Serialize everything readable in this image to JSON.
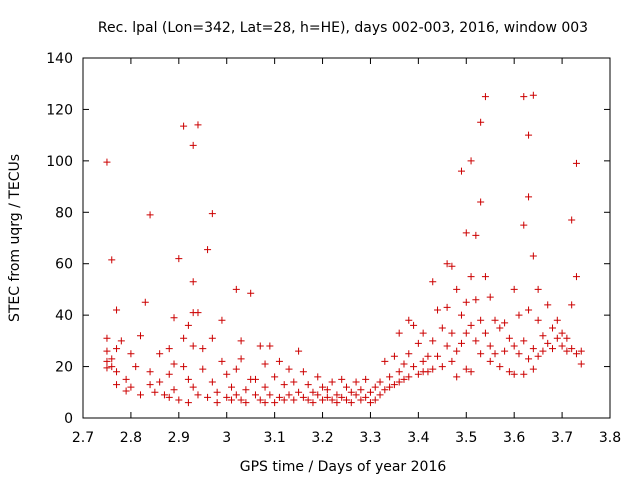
{
  "chart_data": {
    "type": "scatter",
    "title": "Rec. lpal (Lon=342, Lat=28, h=HE), days 002-003, 2016, window 003",
    "xlabel": "GPS time / Days of year 2016",
    "ylabel": "STEC from uqrg / TECUs",
    "xlim": [
      2.7,
      3.8
    ],
    "ylim": [
      0,
      140
    ],
    "xticks": [
      2.7,
      2.8,
      2.9,
      3.0,
      3.1,
      3.2,
      3.3,
      3.4,
      3.5,
      3.6,
      3.7,
      3.8
    ],
    "xtick_labels": [
      "2.7",
      "2.8",
      "2.9",
      "3",
      "3.1",
      "3.2",
      "3.3",
      "3.4",
      "3.5",
      "3.6",
      "3.7",
      "3.8"
    ],
    "yticks": [
      0,
      20,
      40,
      60,
      80,
      100,
      120,
      140
    ],
    "ytick_labels": [
      "0",
      "20",
      "40",
      "60",
      "80",
      "100",
      "120",
      "140"
    ],
    "marker_color": "#cc0000",
    "axis_color": "#000000",
    "series": [
      {
        "name": "STEC",
        "points": [
          [
            2.75,
            99.5
          ],
          [
            2.76,
            61.5
          ],
          [
            2.77,
            42
          ],
          [
            2.75,
            31
          ],
          [
            2.75,
            26
          ],
          [
            2.75,
            22
          ],
          [
            2.75,
            19.5
          ],
          [
            2.76,
            20
          ],
          [
            2.76,
            23
          ],
          [
            2.77,
            27
          ],
          [
            2.77,
            18
          ],
          [
            2.78,
            30
          ],
          [
            2.77,
            13
          ],
          [
            2.79,
            15
          ],
          [
            2.79,
            10.5
          ],
          [
            2.8,
            25
          ],
          [
            2.8,
            12
          ],
          [
            2.81,
            20
          ],
          [
            2.82,
            32
          ],
          [
            2.83,
            45
          ],
          [
            2.82,
            9
          ],
          [
            2.84,
            79
          ],
          [
            2.84,
            18
          ],
          [
            2.84,
            13
          ],
          [
            2.85,
            10
          ],
          [
            2.86,
            25
          ],
          [
            2.86,
            14
          ],
          [
            2.87,
            9
          ],
          [
            2.88,
            27
          ],
          [
            2.88,
            17
          ],
          [
            2.88,
            8
          ],
          [
            2.89,
            39
          ],
          [
            2.89,
            21
          ],
          [
            2.89,
            11
          ],
          [
            2.9,
            7
          ],
          [
            2.9,
            62
          ],
          [
            2.91,
            31
          ],
          [
            2.91,
            20
          ],
          [
            2.91,
            113.5
          ],
          [
            2.92,
            36
          ],
          [
            2.92,
            15
          ],
          [
            2.92,
            6
          ],
          [
            2.93,
            106
          ],
          [
            2.93,
            53
          ],
          [
            2.93,
            41
          ],
          [
            2.93,
            28
          ],
          [
            2.93,
            12
          ],
          [
            2.94,
            114
          ],
          [
            2.94,
            41
          ],
          [
            2.94,
            9
          ],
          [
            2.95,
            27
          ],
          [
            2.95,
            19
          ],
          [
            2.96,
            65.5
          ],
          [
            2.96,
            8
          ],
          [
            2.97,
            79.5
          ],
          [
            2.97,
            31
          ],
          [
            2.97,
            14
          ],
          [
            2.98,
            10
          ],
          [
            2.98,
            6
          ],
          [
            2.99,
            38
          ],
          [
            2.99,
            22
          ],
          [
            3.0,
            17
          ],
          [
            3.0,
            8
          ],
          [
            3.01,
            12
          ],
          [
            3.01,
            7
          ],
          [
            3.02,
            50
          ],
          [
            3.02,
            19
          ],
          [
            3.02,
            9
          ],
          [
            3.03,
            30
          ],
          [
            3.03,
            23
          ],
          [
            3.03,
            7
          ],
          [
            3.04,
            11
          ],
          [
            3.04,
            6
          ],
          [
            3.05,
            48.5
          ],
          [
            3.05,
            15
          ],
          [
            3.06,
            9
          ],
          [
            3.06,
            15
          ],
          [
            3.07,
            28
          ],
          [
            3.07,
            7
          ],
          [
            3.08,
            21
          ],
          [
            3.08,
            12
          ],
          [
            3.08,
            6
          ],
          [
            3.09,
            28
          ],
          [
            3.09,
            9
          ],
          [
            3.1,
            16
          ],
          [
            3.1,
            6
          ],
          [
            3.11,
            22
          ],
          [
            3.11,
            8
          ],
          [
            3.12,
            13
          ],
          [
            3.12,
            7
          ],
          [
            3.13,
            19
          ],
          [
            3.13,
            9
          ],
          [
            3.14,
            14
          ],
          [
            3.14,
            7
          ],
          [
            3.15,
            26
          ],
          [
            3.15,
            10
          ],
          [
            3.16,
            18
          ],
          [
            3.16,
            8
          ],
          [
            3.17,
            13
          ],
          [
            3.17,
            7
          ],
          [
            3.18,
            10
          ],
          [
            3.18,
            6
          ],
          [
            3.19,
            16
          ],
          [
            3.19,
            9
          ],
          [
            3.2,
            12
          ],
          [
            3.2,
            7
          ],
          [
            3.21,
            11
          ],
          [
            3.21,
            8
          ],
          [
            3.22,
            14
          ],
          [
            3.22,
            7
          ],
          [
            3.23,
            9
          ],
          [
            3.23,
            6
          ],
          [
            3.24,
            15
          ],
          [
            3.24,
            8
          ],
          [
            3.25,
            12
          ],
          [
            3.25,
            7
          ],
          [
            3.26,
            10
          ],
          [
            3.26,
            6
          ],
          [
            3.27,
            14
          ],
          [
            3.27,
            9
          ],
          [
            3.28,
            11
          ],
          [
            3.28,
            7
          ],
          [
            3.29,
            15
          ],
          [
            3.29,
            8
          ],
          [
            3.3,
            10
          ],
          [
            3.3,
            6
          ],
          [
            3.31,
            12
          ],
          [
            3.31,
            7
          ],
          [
            3.32,
            14
          ],
          [
            3.32,
            9
          ],
          [
            3.33,
            22
          ],
          [
            3.33,
            11
          ],
          [
            3.34,
            16
          ],
          [
            3.34,
            12
          ],
          [
            3.35,
            24
          ],
          [
            3.35,
            13
          ],
          [
            3.36,
            33
          ],
          [
            3.36,
            18
          ],
          [
            3.36,
            14
          ],
          [
            3.37,
            21
          ],
          [
            3.37,
            15
          ],
          [
            3.38,
            38
          ],
          [
            3.38,
            25
          ],
          [
            3.38,
            16
          ],
          [
            3.39,
            36
          ],
          [
            3.39,
            20
          ],
          [
            3.4,
            29
          ],
          [
            3.4,
            17
          ],
          [
            3.41,
            33
          ],
          [
            3.41,
            22
          ],
          [
            3.41,
            18
          ],
          [
            3.42,
            24
          ],
          [
            3.42,
            18
          ],
          [
            3.43,
            53
          ],
          [
            3.43,
            30
          ],
          [
            3.43,
            19
          ],
          [
            3.44,
            42
          ],
          [
            3.44,
            24
          ],
          [
            3.45,
            35
          ],
          [
            3.45,
            20
          ],
          [
            3.46,
            60
          ],
          [
            3.46,
            43
          ],
          [
            3.46,
            28
          ],
          [
            3.47,
            59
          ],
          [
            3.47,
            33
          ],
          [
            3.47,
            22
          ],
          [
            3.48,
            50
          ],
          [
            3.48,
            26
          ],
          [
            3.48,
            16
          ],
          [
            3.49,
            96
          ],
          [
            3.49,
            40
          ],
          [
            3.49,
            29
          ],
          [
            3.5,
            72
          ],
          [
            3.5,
            45
          ],
          [
            3.5,
            33
          ],
          [
            3.5,
            19
          ],
          [
            3.51,
            100
          ],
          [
            3.51,
            55
          ],
          [
            3.51,
            36
          ],
          [
            3.51,
            18
          ],
          [
            3.52,
            71
          ],
          [
            3.52,
            46
          ],
          [
            3.52,
            30
          ],
          [
            3.53,
            115
          ],
          [
            3.53,
            84
          ],
          [
            3.53,
            38
          ],
          [
            3.53,
            25
          ],
          [
            3.54,
            125
          ],
          [
            3.54,
            55
          ],
          [
            3.54,
            33
          ],
          [
            3.55,
            47
          ],
          [
            3.55,
            28
          ],
          [
            3.55,
            22
          ],
          [
            3.56,
            38
          ],
          [
            3.56,
            25
          ],
          [
            3.57,
            35
          ],
          [
            3.57,
            20
          ],
          [
            3.58,
            37
          ],
          [
            3.58,
            26
          ],
          [
            3.59,
            31
          ],
          [
            3.59,
            18
          ],
          [
            3.6,
            50
          ],
          [
            3.6,
            28
          ],
          [
            3.6,
            17
          ],
          [
            3.61,
            40
          ],
          [
            3.61,
            25
          ],
          [
            3.62,
            125
          ],
          [
            3.62,
            75
          ],
          [
            3.62,
            30
          ],
          [
            3.62,
            17
          ],
          [
            3.63,
            110
          ],
          [
            3.63,
            86
          ],
          [
            3.63,
            42
          ],
          [
            3.63,
            23
          ],
          [
            3.64,
            125.5
          ],
          [
            3.64,
            63
          ],
          [
            3.64,
            27
          ],
          [
            3.64,
            19
          ],
          [
            3.65,
            50
          ],
          [
            3.65,
            38
          ],
          [
            3.65,
            24
          ],
          [
            3.66,
            32
          ],
          [
            3.66,
            26
          ],
          [
            3.67,
            44
          ],
          [
            3.67,
            29
          ],
          [
            3.68,
            35
          ],
          [
            3.68,
            27
          ],
          [
            3.69,
            38
          ],
          [
            3.69,
            31
          ],
          [
            3.7,
            33
          ],
          [
            3.7,
            28
          ],
          [
            3.71,
            31
          ],
          [
            3.71,
            26
          ],
          [
            3.72,
            77
          ],
          [
            3.72,
            44
          ],
          [
            3.72,
            27
          ],
          [
            3.73,
            99
          ],
          [
            3.73,
            55
          ],
          [
            3.73,
            25
          ],
          [
            3.74,
            21
          ],
          [
            3.74,
            26
          ]
        ]
      }
    ]
  }
}
